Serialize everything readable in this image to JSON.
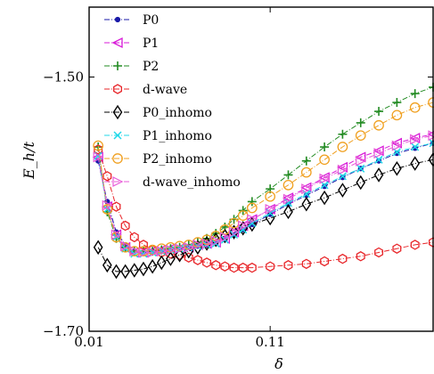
{
  "chart_data": {
    "type": "line",
    "xlabel": "δ",
    "ylabel": "E_h/t",
    "xlim": [
      0.01,
      0.2
    ],
    "ylim": [
      -1.7,
      -1.445
    ],
    "xticks": [
      {
        "value": 0.01,
        "label": "0.01"
      },
      {
        "value": 0.11,
        "label": "0.11"
      }
    ],
    "yticks": [
      {
        "value": -1.5,
        "label": "−1.50"
      },
      {
        "value": -1.7,
        "label": "−1.70"
      }
    ],
    "grid": false,
    "legend_position": "top-left",
    "series": [
      {
        "name": "P0",
        "color": "#1a1aa8",
        "marker": "circle",
        "dash": "6,2,1,2",
        "x": [
          0.015,
          0.02,
          0.025,
          0.03,
          0.035,
          0.04,
          0.045,
          0.05,
          0.055,
          0.06,
          0.065,
          0.07,
          0.075,
          0.08,
          0.085,
          0.09,
          0.095,
          0.1,
          0.11,
          0.12,
          0.13,
          0.14,
          0.15,
          0.16,
          0.17,
          0.18,
          0.19,
          0.2
        ],
        "y": [
          -1.566,
          -1.598,
          -1.622,
          -1.632,
          -1.637,
          -1.638,
          -1.637,
          -1.636,
          -1.635,
          -1.635,
          -1.634,
          -1.633,
          -1.632,
          -1.631,
          -1.628,
          -1.624,
          -1.62,
          -1.616,
          -1.608,
          -1.6,
          -1.593,
          -1.586,
          -1.579,
          -1.572,
          -1.566,
          -1.56,
          -1.556,
          -1.552
        ]
      },
      {
        "name": "P1",
        "color": "#d81bd8",
        "marker": "triangle-left",
        "dash": "6,2,1,2",
        "x": [
          0.015,
          0.02,
          0.025,
          0.03,
          0.035,
          0.04,
          0.045,
          0.05,
          0.055,
          0.06,
          0.065,
          0.07,
          0.075,
          0.08,
          0.085,
          0.09,
          0.095,
          0.1,
          0.11,
          0.12,
          0.13,
          0.14,
          0.15,
          0.16,
          0.17,
          0.18,
          0.19,
          0.2
        ],
        "y": [
          -1.563,
          -1.602,
          -1.624,
          -1.634,
          -1.638,
          -1.638,
          -1.637,
          -1.636,
          -1.635,
          -1.635,
          -1.634,
          -1.632,
          -1.631,
          -1.63,
          -1.627,
          -1.622,
          -1.617,
          -1.612,
          -1.604,
          -1.595,
          -1.587,
          -1.579,
          -1.571,
          -1.563,
          -1.558,
          -1.552,
          -1.548,
          -1.545
        ]
      },
      {
        "name": "P2",
        "color": "#228b22",
        "marker": "plus",
        "dash": "6,2,1,2",
        "x": [
          0.015,
          0.02,
          0.025,
          0.03,
          0.035,
          0.04,
          0.045,
          0.05,
          0.055,
          0.06,
          0.065,
          0.07,
          0.075,
          0.08,
          0.085,
          0.09,
          0.095,
          0.1,
          0.11,
          0.12,
          0.13,
          0.14,
          0.15,
          0.16,
          0.17,
          0.18,
          0.19,
          0.2
        ],
        "y": [
          -1.555,
          -1.606,
          -1.627,
          -1.634,
          -1.637,
          -1.637,
          -1.637,
          -1.636,
          -1.635,
          -1.634,
          -1.632,
          -1.63,
          -1.627,
          -1.623,
          -1.618,
          -1.612,
          -1.605,
          -1.598,
          -1.588,
          -1.577,
          -1.566,
          -1.555,
          -1.545,
          -1.536,
          -1.527,
          -1.52,
          -1.513,
          -1.508
        ]
      },
      {
        "name": "d-wave",
        "color": "#e8262a",
        "marker": "hexagon",
        "dash": "6,2,1,2",
        "x": [
          0.015,
          0.02,
          0.025,
          0.03,
          0.035,
          0.04,
          0.045,
          0.05,
          0.055,
          0.06,
          0.065,
          0.07,
          0.075,
          0.08,
          0.085,
          0.09,
          0.095,
          0.1,
          0.11,
          0.12,
          0.13,
          0.14,
          0.15,
          0.16,
          0.17,
          0.18,
          0.19,
          0.2
        ],
        "y": [
          -1.557,
          -1.578,
          -1.602,
          -1.617,
          -1.626,
          -1.632,
          -1.636,
          -1.638,
          -1.639,
          -1.64,
          -1.642,
          -1.644,
          -1.646,
          -1.648,
          -1.649,
          -1.65,
          -1.65,
          -1.65,
          -1.649,
          -1.648,
          -1.647,
          -1.645,
          -1.643,
          -1.641,
          -1.638,
          -1.635,
          -1.632,
          -1.63
        ]
      },
      {
        "name": "P0_inhomo",
        "color": "#000000",
        "marker": "diamond",
        "dash": "6,2,1,2",
        "x": [
          0.015,
          0.02,
          0.025,
          0.03,
          0.035,
          0.04,
          0.045,
          0.05,
          0.055,
          0.06,
          0.065,
          0.07,
          0.075,
          0.08,
          0.085,
          0.09,
          0.095,
          0.1,
          0.11,
          0.12,
          0.13,
          0.14,
          0.15,
          0.16,
          0.17,
          0.18,
          0.19,
          0.2
        ],
        "y": [
          -1.634,
          -1.648,
          -1.653,
          -1.653,
          -1.652,
          -1.651,
          -1.649,
          -1.646,
          -1.643,
          -1.64,
          -1.637,
          -1.634,
          -1.631,
          -1.628,
          -1.625,
          -1.622,
          -1.619,
          -1.616,
          -1.611,
          -1.606,
          -1.6,
          -1.595,
          -1.589,
          -1.583,
          -1.577,
          -1.572,
          -1.568,
          -1.565
        ]
      },
      {
        "name": "P1_inhomo",
        "color": "#20d8e8",
        "marker": "x",
        "dash": "6,2,1,2",
        "x": [
          0.015,
          0.02,
          0.025,
          0.03,
          0.035,
          0.04,
          0.045,
          0.05,
          0.055,
          0.06,
          0.065,
          0.07,
          0.075,
          0.08,
          0.085,
          0.09,
          0.095,
          0.1,
          0.11,
          0.12,
          0.13,
          0.14,
          0.15,
          0.16,
          0.17,
          0.18,
          0.19,
          0.2
        ],
        "y": [
          -1.562,
          -1.604,
          -1.626,
          -1.635,
          -1.639,
          -1.639,
          -1.638,
          -1.637,
          -1.636,
          -1.635,
          -1.634,
          -1.633,
          -1.632,
          -1.631,
          -1.628,
          -1.624,
          -1.62,
          -1.615,
          -1.607,
          -1.599,
          -1.592,
          -1.585,
          -1.578,
          -1.572,
          -1.565,
          -1.559,
          -1.555,
          -1.552
        ]
      },
      {
        "name": "P2_inhomo",
        "color": "#f0a020",
        "marker": "circle-open",
        "dash": "6,2,1,2",
        "x": [
          0.015,
          0.02,
          0.025,
          0.03,
          0.035,
          0.04,
          0.045,
          0.05,
          0.055,
          0.06,
          0.065,
          0.07,
          0.075,
          0.08,
          0.085,
          0.09,
          0.095,
          0.1,
          0.11,
          0.12,
          0.13,
          0.14,
          0.15,
          0.16,
          0.17,
          0.18,
          0.19,
          0.2
        ],
        "y": [
          -1.554,
          -1.604,
          -1.626,
          -1.634,
          -1.637,
          -1.637,
          -1.636,
          -1.635,
          -1.634,
          -1.633,
          -1.632,
          -1.63,
          -1.628,
          -1.625,
          -1.62,
          -1.615,
          -1.609,
          -1.603,
          -1.594,
          -1.585,
          -1.575,
          -1.565,
          -1.555,
          -1.546,
          -1.538,
          -1.53,
          -1.524,
          -1.52
        ]
      },
      {
        "name": "d-wave_inhomo",
        "color": "#e85ad8",
        "marker": "triangle-right",
        "dash": "6,2,1,2",
        "x": [
          0.015,
          0.02,
          0.025,
          0.03,
          0.035,
          0.04,
          0.045,
          0.05,
          0.055,
          0.06,
          0.065,
          0.07,
          0.075,
          0.08,
          0.085,
          0.09,
          0.095,
          0.1,
          0.11,
          0.12,
          0.13,
          0.14,
          0.15,
          0.16,
          0.17,
          0.18,
          0.19,
          0.2
        ],
        "y": [
          -1.563,
          -1.601,
          -1.624,
          -1.633,
          -1.637,
          -1.638,
          -1.638,
          -1.637,
          -1.636,
          -1.635,
          -1.634,
          -1.632,
          -1.631,
          -1.629,
          -1.626,
          -1.622,
          -1.617,
          -1.612,
          -1.604,
          -1.596,
          -1.588,
          -1.58,
          -1.573,
          -1.566,
          -1.56,
          -1.554,
          -1.549,
          -1.546
        ]
      }
    ]
  }
}
